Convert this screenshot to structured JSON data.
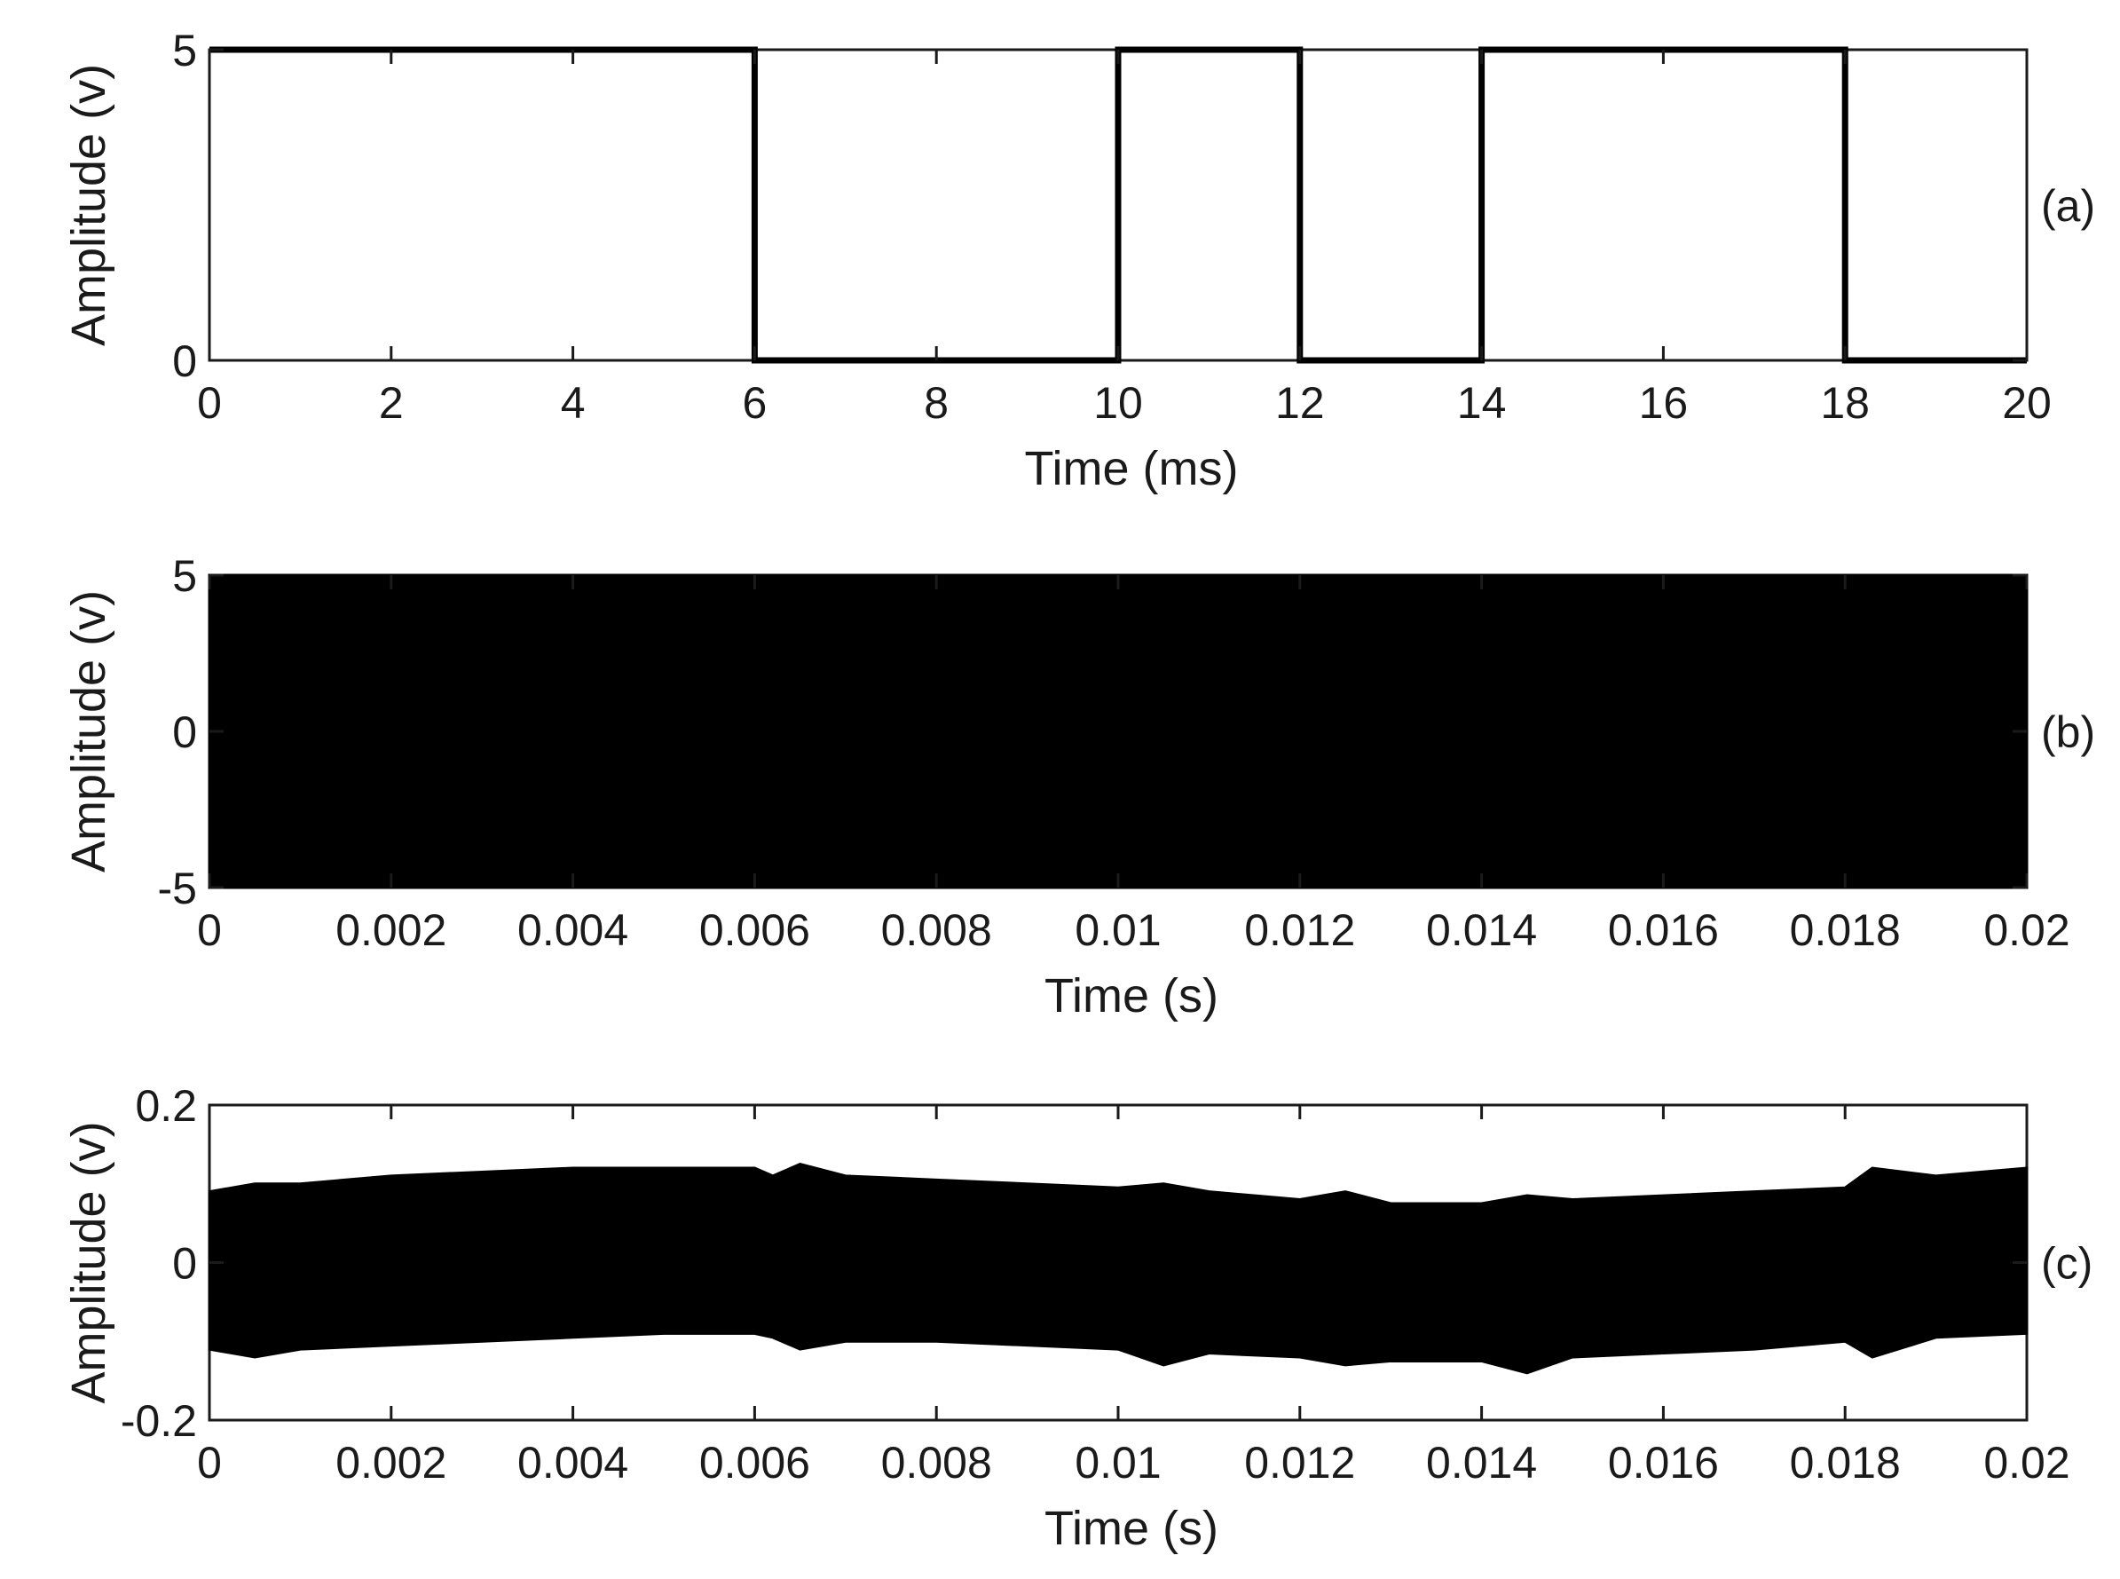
{
  "chart_data": [
    {
      "panel_label": "(a)",
      "type": "line",
      "xlabel": "Time (ms)",
      "ylabel": "Amplitude (v)",
      "xlim": [
        0,
        20
      ],
      "ylim": [
        0,
        5
      ],
      "xticks": [
        "0",
        "2",
        "4",
        "6",
        "8",
        "10",
        "12",
        "14",
        "16",
        "18",
        "20"
      ],
      "yticks": [
        "0",
        "5"
      ],
      "grid": false,
      "series": [
        {
          "x": [
            0,
            6,
            6,
            10,
            10,
            12,
            12,
            14,
            14,
            18,
            18,
            20
          ],
          "y": [
            5,
            5,
            0,
            0,
            5,
            5,
            0,
            0,
            5,
            5,
            0,
            0
          ]
        }
      ]
    },
    {
      "panel_label": "(b)",
      "type": "area",
      "xlabel": "Time (s)",
      "ylabel": "Amplitude (v)",
      "xlim": [
        0,
        0.02
      ],
      "ylim": [
        -5,
        5
      ],
      "xticks": [
        "0",
        "0.002",
        "0.004",
        "0.006",
        "0.008",
        "0.01",
        "0.012",
        "0.014",
        "0.016",
        "0.018",
        "0.02"
      ],
      "yticks": [
        "-5",
        "0",
        "5"
      ],
      "grid": false,
      "series": [
        {
          "x": [
            0,
            0.002,
            0.004,
            0.006,
            0.008,
            0.01,
            0.012,
            0.014,
            0.016,
            0.018,
            0.02
          ],
          "upper": [
            5,
            5,
            5,
            5,
            5,
            5,
            5,
            5,
            5,
            5,
            5
          ],
          "lower": [
            -5,
            -5,
            -5,
            -5,
            -5,
            -5,
            -5,
            -5,
            -5,
            -5,
            -5
          ]
        }
      ]
    },
    {
      "panel_label": "(c)",
      "type": "area",
      "xlabel": "Time (s)",
      "ylabel": "Amplitude (v)",
      "xlim": [
        0,
        0.02
      ],
      "ylim": [
        -0.2,
        0.2
      ],
      "xticks": [
        "0",
        "0.002",
        "0.004",
        "0.006",
        "0.008",
        "0.01",
        "0.012",
        "0.014",
        "0.016",
        "0.018",
        "0.02"
      ],
      "yticks": [
        "-0.2",
        "0",
        "0.2"
      ],
      "grid": false,
      "series": [
        {
          "x": [
            0,
            0.0005,
            0.001,
            0.002,
            0.003,
            0.004,
            0.005,
            0.006,
            0.0062,
            0.0065,
            0.007,
            0.008,
            0.009,
            0.01,
            0.0105,
            0.011,
            0.012,
            0.0125,
            0.013,
            0.014,
            0.0145,
            0.015,
            0.016,
            0.017,
            0.018,
            0.0183,
            0.019,
            0.02
          ],
          "upper": [
            0.09,
            0.1,
            0.1,
            0.11,
            0.115,
            0.12,
            0.12,
            0.12,
            0.11,
            0.125,
            0.11,
            0.105,
            0.1,
            0.095,
            0.1,
            0.09,
            0.08,
            0.09,
            0.075,
            0.075,
            0.085,
            0.08,
            0.085,
            0.09,
            0.095,
            0.12,
            0.11,
            0.12
          ],
          "lower": [
            -0.11,
            -0.12,
            -0.11,
            -0.105,
            -0.1,
            -0.095,
            -0.09,
            -0.09,
            -0.095,
            -0.11,
            -0.1,
            -0.1,
            -0.105,
            -0.11,
            -0.13,
            -0.115,
            -0.12,
            -0.13,
            -0.125,
            -0.125,
            -0.14,
            -0.12,
            -0.115,
            -0.11,
            -0.1,
            -0.12,
            -0.095,
            -0.09
          ]
        }
      ]
    }
  ]
}
